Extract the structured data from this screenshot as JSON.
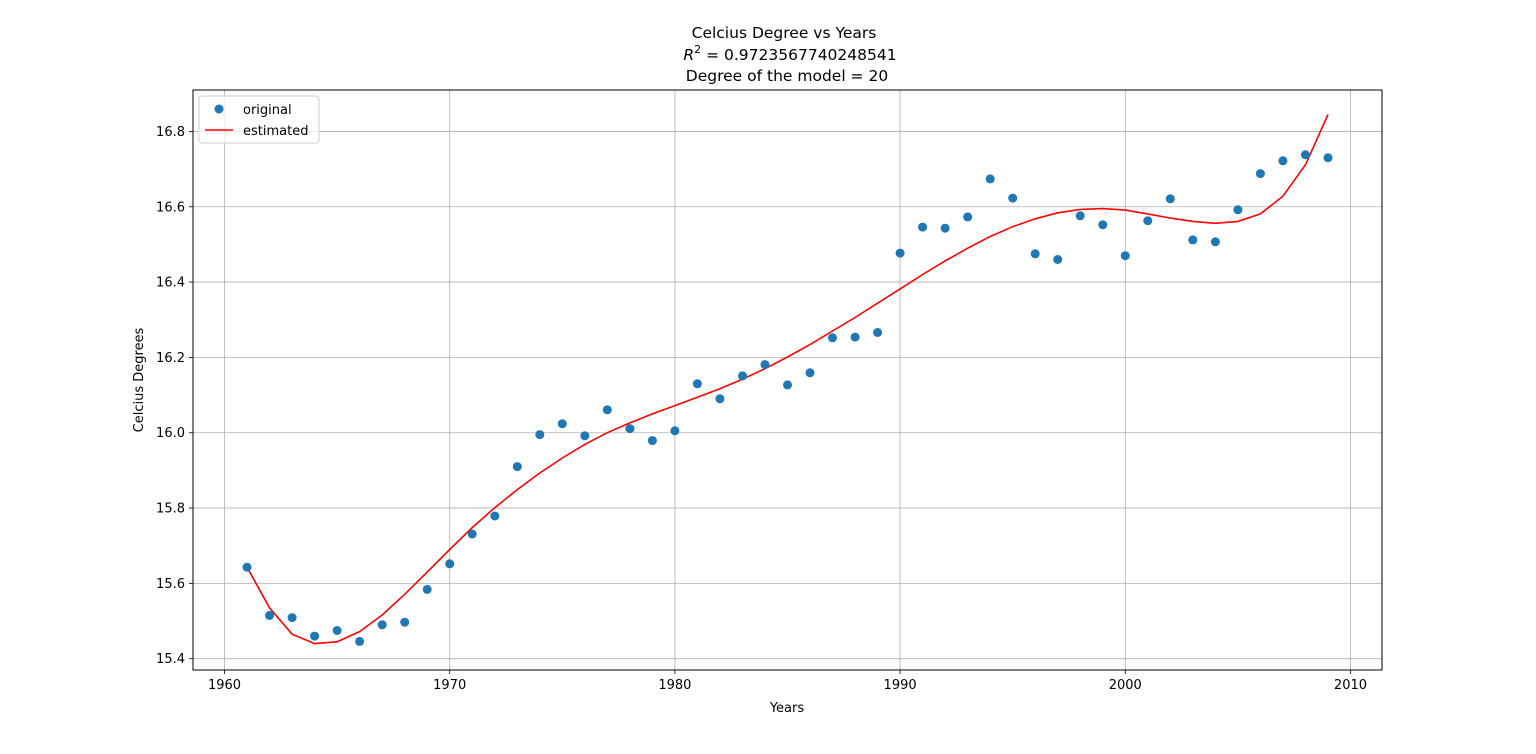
{
  "chart_data": {
    "type": "scatter",
    "title_lines": [
      "Celcius Degree vs Years",
      "R",
      "2",
      " = 0.9723567740248541",
      "Degree of the model = 20"
    ],
    "xlabel": "Years",
    "ylabel": "Celcius Degrees",
    "xlim": [
      1958.6,
      2011.4
    ],
    "ylim": [
      15.37,
      16.91
    ],
    "xticks": [
      1960,
      1970,
      1980,
      1990,
      2000,
      2010
    ],
    "yticks": [
      15.4,
      15.6,
      15.8,
      16.0,
      16.2,
      16.4,
      16.6,
      16.8
    ],
    "grid": true,
    "legend_position": "upper-left",
    "x": [
      1961,
      1962,
      1963,
      1964,
      1965,
      1966,
      1967,
      1968,
      1969,
      1970,
      1971,
      1972,
      1973,
      1974,
      1975,
      1976,
      1977,
      1978,
      1979,
      1980,
      1981,
      1982,
      1983,
      1984,
      1985,
      1986,
      1987,
      1988,
      1989,
      1990,
      1991,
      1992,
      1993,
      1994,
      1995,
      1996,
      1997,
      1998,
      1999,
      2000,
      2001,
      2002,
      2003,
      2004,
      2005,
      2006,
      2007,
      2008,
      2009
    ],
    "series": [
      {
        "name": "original",
        "kind": "scatter",
        "color": "#1f77b4",
        "values": [
          15.643,
          15.515,
          15.509,
          15.46,
          15.475,
          15.446,
          15.49,
          15.497,
          15.584,
          15.652,
          15.731,
          15.779,
          15.91,
          15.995,
          16.024,
          15.992,
          16.061,
          16.011,
          15.979,
          16.005,
          16.13,
          16.09,
          16.151,
          16.181,
          16.127,
          16.159,
          16.252,
          16.254,
          16.266,
          16.477,
          16.546,
          16.543,
          16.573,
          16.674,
          16.623,
          16.475,
          16.46,
          16.576,
          16.552,
          16.47,
          16.563,
          16.621,
          16.512,
          16.507,
          16.592,
          16.688,
          16.722,
          16.738,
          16.73
        ]
      },
      {
        "name": "estimated",
        "kind": "line",
        "color": "#ff0000",
        "values": [
          15.643,
          15.535,
          15.465,
          15.44,
          15.445,
          15.472,
          15.516,
          15.571,
          15.63,
          15.69,
          15.748,
          15.801,
          15.849,
          15.893,
          15.933,
          15.969,
          16.0,
          16.026,
          16.05,
          16.072,
          16.094,
          16.117,
          16.142,
          16.17,
          16.201,
          16.234,
          16.27,
          16.306,
          16.344,
          16.382,
          16.42,
          16.456,
          16.49,
          16.521,
          16.547,
          16.568,
          16.584,
          16.593,
          16.595,
          16.591,
          16.581,
          16.57,
          16.561,
          16.556,
          16.561,
          16.581,
          16.628,
          16.711,
          16.845
        ]
      }
    ]
  }
}
